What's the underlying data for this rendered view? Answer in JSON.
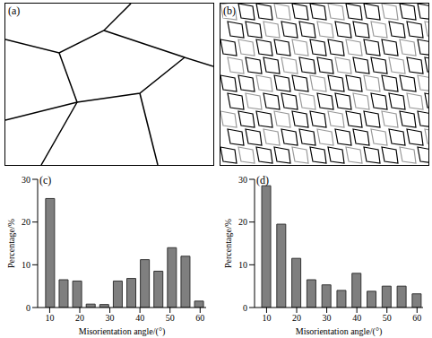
{
  "maps": [
    {
      "label": "(a)"
    },
    {
      "label": "(b)"
    }
  ],
  "chart_data": [
    {
      "type": "bar",
      "label": "(c)",
      "x_label": "Misorientation angle/(°)",
      "y_label": "Percentage/%",
      "x": [
        10,
        14.5,
        19,
        23.5,
        28,
        32.5,
        37,
        41.5,
        46,
        50.5,
        55,
        59.5
      ],
      "values": [
        25.5,
        6.5,
        6.2,
        0.8,
        0.7,
        6.2,
        6.8,
        11.2,
        8.5,
        14,
        12,
        1.5
      ],
      "color": "#7f7f7f",
      "xlim": [
        6,
        62
      ],
      "xticks": [
        10,
        20,
        30,
        40,
        50,
        60
      ],
      "ylim": [
        0,
        30
      ],
      "yticks": [
        0,
        10,
        20,
        30
      ]
    },
    {
      "type": "bar",
      "label": "(d)",
      "x_label": "Misorientation angle/(°)",
      "y_label": "Percentage/%",
      "x": [
        10,
        15,
        20,
        25,
        30,
        35,
        40,
        45,
        50,
        55,
        60
      ],
      "values": [
        28.5,
        19.5,
        11.5,
        6.5,
        5.3,
        4,
        8,
        3.8,
        5,
        5,
        3.2
      ],
      "color": "#7f7f7f",
      "xlim": [
        6,
        62
      ],
      "xticks": [
        10,
        20,
        30,
        40,
        50,
        60
      ],
      "ylim": [
        0,
        30
      ],
      "yticks": [
        0,
        10,
        20,
        30
      ]
    }
  ]
}
